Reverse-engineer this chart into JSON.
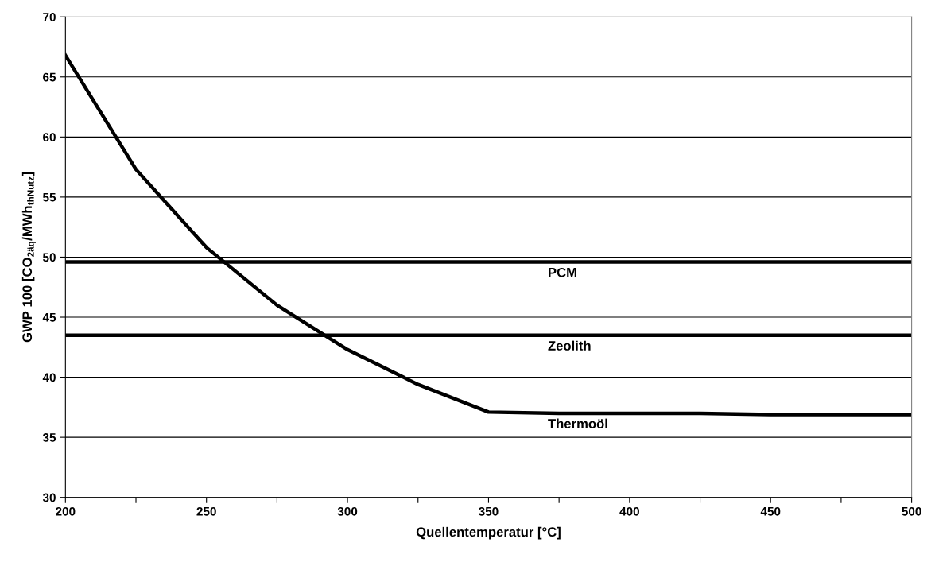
{
  "chart_data": {
    "type": "line",
    "xlabel": "Quellentemperatur [°C]",
    "ylabel": "GWP 100 [CO$_{2äq}$/MWh$_{thNutz}$]",
    "x": [
      200,
      225,
      250,
      275,
      300,
      325,
      350,
      375,
      400,
      425,
      450,
      475,
      500
    ],
    "series": [
      {
        "name": "PCM",
        "color": "#000000",
        "values": [
          49.6,
          49.6,
          49.6,
          49.6,
          49.6,
          49.6,
          49.6,
          49.6,
          49.6,
          49.6,
          49.6,
          49.6,
          49.6
        ]
      },
      {
        "name": "Zeolith",
        "color": "#000000",
        "values": [
          43.5,
          43.5,
          43.5,
          43.5,
          43.5,
          43.5,
          43.5,
          43.5,
          43.5,
          43.5,
          43.5,
          43.5,
          43.5
        ]
      },
      {
        "name": "Thermoöl",
        "color": "#000000",
        "values": [
          66.8,
          57.3,
          50.8,
          46.0,
          42.3,
          39.4,
          37.1,
          37.0,
          37.0,
          37.0,
          36.9,
          36.9,
          36.9
        ]
      }
    ],
    "xlim": [
      200,
      500
    ],
    "xticks": [
      200,
      {
        "value": 225,
        "label": null
      },
      250,
      {
        "value": 275,
        "label": null
      },
      300,
      {
        "value": 325,
        "label": null
      },
      350,
      {
        "value": 375,
        "label": null
      },
      400,
      {
        "value": 425,
        "label": null
      },
      450,
      {
        "value": 475,
        "label": null
      },
      500
    ],
    "ylim": [
      30,
      70
    ],
    "yticks": [
      30,
      35,
      40,
      45,
      50,
      55,
      60,
      65,
      70
    ],
    "grid": "y",
    "legend": false,
    "marker": "none",
    "line_style": "solid"
  }
}
